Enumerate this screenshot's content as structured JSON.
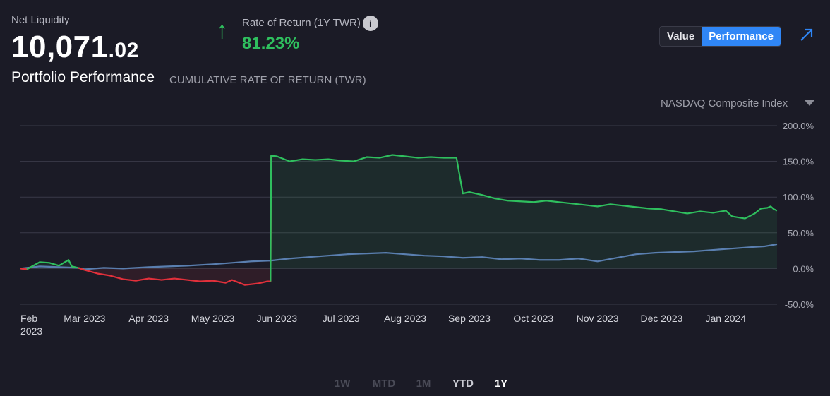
{
  "header": {
    "net_liquidity_label": "Net Liquidity",
    "net_liquidity_whole": "10,071",
    "net_liquidity_cents": ".02",
    "return_label": "Rate of Return (1Y TWR)",
    "return_value": "81.23%",
    "info_icon": "i"
  },
  "toggle": {
    "value_label": "Value",
    "performance_label": "Performance",
    "active": "Performance"
  },
  "section": {
    "title": "Portfolio Performance",
    "subtitle": "CUMULATIVE RATE OF RETURN (TWR)"
  },
  "benchmark": {
    "selected": "NASDAQ Composite Index"
  },
  "time_ranges": [
    {
      "label": "1W",
      "active": false,
      "disabled": true
    },
    {
      "label": "MTD",
      "active": false,
      "disabled": true
    },
    {
      "label": "1M",
      "active": false,
      "disabled": true
    },
    {
      "label": "YTD",
      "active": false,
      "disabled": false
    },
    {
      "label": "1Y",
      "active": true,
      "disabled": false
    }
  ],
  "colors": {
    "positive": "#2fbf5e",
    "negative": "#e2303b",
    "benchmark": "#5a7fb0",
    "accent": "#2f86f6",
    "grid": "#3a3b48"
  },
  "chart_data": {
    "type": "line",
    "y_ticks": [
      "200.0%",
      "150.0%",
      "100.0%",
      "50.0%",
      "0.0%",
      "-50.0%"
    ],
    "y_tick_values": [
      200,
      150,
      100,
      50,
      0,
      -50
    ],
    "ylim": [
      -50,
      200
    ],
    "x_tick_labels": [
      [
        "Feb",
        "2023"
      ],
      [
        "Mar 2023"
      ],
      [
        "Apr 2023"
      ],
      [
        "May 2023"
      ],
      [
        "Jun 2023"
      ],
      [
        "Jul 2023"
      ],
      [
        "Aug 2023"
      ],
      [
        "Sep 2023"
      ],
      [
        "Oct 2023"
      ],
      [
        "Nov 2023"
      ],
      [
        "Dec 2023"
      ],
      [
        "Jan 2024"
      ]
    ],
    "x_tick_positions": [
      0,
      1,
      2,
      3,
      4,
      5,
      6,
      7,
      8,
      9,
      10,
      11
    ],
    "xlim": [
      0,
      11.8
    ],
    "grid": true,
    "series": [
      {
        "role": "portfolio",
        "x": [
          0,
          0.1,
          0.2,
          0.3,
          0.45,
          0.6,
          0.75,
          0.8,
          0.9,
          1.0,
          1.2,
          1.4,
          1.6,
          1.8,
          2.0,
          2.2,
          2.4,
          2.6,
          2.8,
          3.0,
          3.2,
          3.3,
          3.5,
          3.7,
          3.85,
          3.9,
          3.91,
          4.0,
          4.2,
          4.4,
          4.6,
          4.8,
          5.0,
          5.2,
          5.4,
          5.6,
          5.8,
          6.0,
          6.2,
          6.4,
          6.6,
          6.8,
          6.9,
          6.95,
          7.0,
          7.2,
          7.4,
          7.6,
          7.8,
          8.0,
          8.2,
          8.4,
          8.6,
          8.8,
          9.0,
          9.2,
          9.4,
          9.6,
          9.8,
          10.0,
          10.2,
          10.4,
          10.6,
          10.8,
          11.0,
          11.1,
          11.3,
          11.45,
          11.55,
          11.65,
          11.7,
          11.75,
          11.8
        ],
        "y": [
          0,
          -1,
          4,
          9,
          8,
          4,
          12,
          3,
          1,
          -2,
          -7,
          -10,
          -15,
          -17,
          -14,
          -16,
          -14,
          -16,
          -18,
          -17,
          -20,
          -16,
          -23,
          -21,
          -18,
          -18,
          158,
          157,
          150,
          153,
          152,
          153,
          151,
          150,
          156,
          155,
          159,
          157,
          155,
          156,
          155,
          155,
          105,
          106,
          107,
          103,
          98,
          95,
          94,
          93,
          95,
          93,
          91,
          89,
          87,
          90,
          88,
          86,
          84,
          83,
          80,
          77,
          80,
          78,
          81,
          73,
          70,
          77,
          84,
          85,
          87,
          83,
          81
        ]
      },
      {
        "role": "benchmark",
        "name": "NASDAQ Composite Index",
        "x": [
          0,
          0.3,
          0.6,
          0.9,
          1.0,
          1.3,
          1.6,
          2.0,
          2.3,
          2.6,
          3.0,
          3.3,
          3.6,
          3.9,
          4.2,
          4.5,
          4.8,
          5.1,
          5.4,
          5.7,
          6.0,
          6.3,
          6.6,
          6.9,
          7.2,
          7.5,
          7.8,
          8.1,
          8.4,
          8.7,
          9.0,
          9.3,
          9.6,
          9.9,
          10.2,
          10.5,
          10.8,
          11.1,
          11.4,
          11.6,
          11.8
        ],
        "y": [
          0,
          3,
          2,
          1,
          -1,
          1,
          0,
          2,
          3,
          4,
          6,
          8,
          10,
          11,
          14,
          16,
          18,
          20,
          21,
          22,
          20,
          18,
          17,
          15,
          16,
          13,
          14,
          12,
          12,
          14,
          10,
          15,
          20,
          22,
          23,
          24,
          26,
          28,
          30,
          31,
          34
        ]
      }
    ]
  }
}
